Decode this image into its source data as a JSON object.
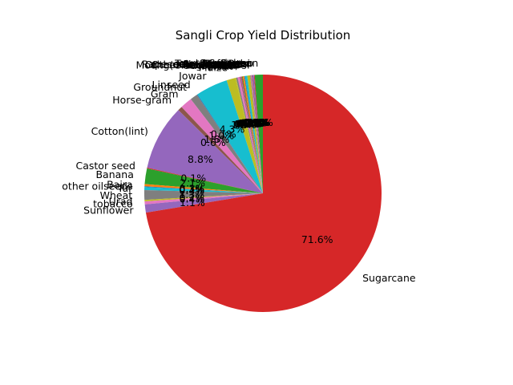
{
  "chart_data": {
    "type": "pie",
    "title": "Sangli Crop Yield Distribution",
    "start_angle_deg": 90,
    "counterclock": true,
    "pct_format": "%.1f%%",
    "slices": [
      {
        "label": "Soyabean",
        "value": 1.1,
        "color": "#2ca02c"
      },
      {
        "label": "Sannhamp",
        "value": 0.1,
        "color": "#d62728"
      },
      {
        "label": "Sesamum",
        "value": 0.2,
        "color": "#9467bd"
      },
      {
        "label": "Safflower",
        "value": 0.1,
        "color": "#8c564b"
      },
      {
        "label": "Ragi",
        "value": 0.1,
        "color": "#e377c2"
      },
      {
        "label": "Total foodgrain",
        "value": 0.1,
        "color": "#7f7f7f"
      },
      {
        "label": "Small millets",
        "value": 0.4,
        "color": "#bcbd22"
      },
      {
        "label": "other oilseeds",
        "value": 0.3,
        "color": "#17becf"
      },
      {
        "label": "Rapeseed &Mustard",
        "value": 0.1,
        "color": "#1f77b4"
      },
      {
        "label": "Other Kharif pulses",
        "value": 0.2,
        "color": "#ff7f0e"
      },
      {
        "label": "Other Rabi pulses",
        "value": 0.1,
        "color": "#2ca02c"
      },
      {
        "label": "Niger seed",
        "value": 0.1,
        "color": "#d62728"
      },
      {
        "label": "Moong(Green Gram)",
        "value": 0.1,
        "color": "#9467bd"
      },
      {
        "label": "Masoor",
        "value": 0.1,
        "color": "#8c564b"
      },
      {
        "label": "Other Rabi",
        "value": 0.3,
        "color": "#e377c2"
      },
      {
        "label": "Rice",
        "value": 0.2,
        "color": "#7f7f7f"
      },
      {
        "label": "Moth",
        "value": 0.1,
        "color": "#bcbd22"
      },
      {
        "label": "Maize",
        "value": 1.2,
        "color": "#bcbd22"
      },
      {
        "label": "Jowar",
        "value": 4.3,
        "color": "#17becf"
      },
      {
        "label": "Linseed",
        "value": 0.1,
        "color": "#1f77b4"
      },
      {
        "label": "Groundnut",
        "value": 1.0,
        "color": "#7f7f7f"
      },
      {
        "label": "Gram",
        "value": 1.6,
        "color": "#e377c2"
      },
      {
        "label": "Horse-gram",
        "value": 0.6,
        "color": "#8c564b"
      },
      {
        "label": "Cotton(lint)",
        "value": 8.8,
        "color": "#9467bd"
      },
      {
        "label": "Castor seed",
        "value": 0.1,
        "color": "#d62728"
      },
      {
        "label": "Banana",
        "value": 2.1,
        "color": "#2ca02c"
      },
      {
        "label": "Bajra",
        "value": 0.3,
        "color": "#ff7f0e"
      },
      {
        "label": "other oilseeds",
        "value": 0.1,
        "color": "#1f77b4"
      },
      {
        "label": "Tur",
        "value": 0.4,
        "color": "#17becf"
      },
      {
        "label": "Wheat",
        "value": 1.3,
        "color": "#7f7f7f"
      },
      {
        "label": "Urad",
        "value": 0.2,
        "color": "#bcbd22"
      },
      {
        "label": "tobacco",
        "value": 0.4,
        "color": "#e377c2"
      },
      {
        "label": "Sunflower",
        "value": 1.1,
        "color": "#9467bd"
      },
      {
        "label": "Sugarcane",
        "value": 71.6,
        "color": "#d62728"
      }
    ]
  }
}
